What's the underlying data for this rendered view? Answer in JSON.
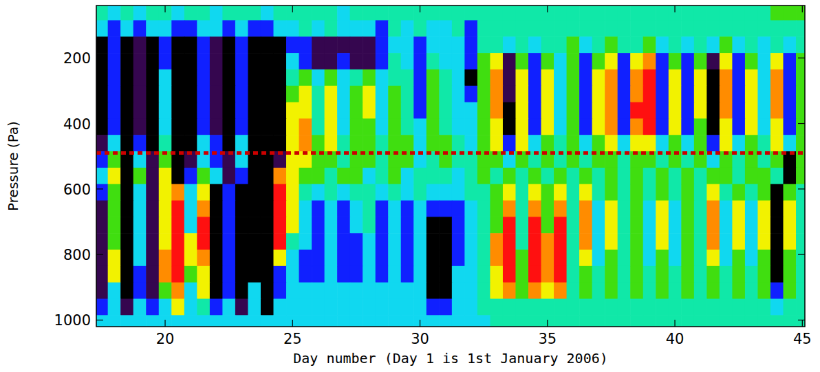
{
  "chart_data": {
    "type": "heatmap",
    "x_label": "Day number (Day 1 is 1st January 2006)",
    "y_label": "Pressure (Pa)",
    "xlim": [
      17.3,
      45.1
    ],
    "ylim": [
      1020,
      40
    ],
    "xticks": [
      20,
      25,
      30,
      35,
      40,
      45
    ],
    "yticks": [
      200,
      400,
      600,
      800,
      1000
    ],
    "zlim": [
      0,
      8
    ],
    "reference_line": {
      "value": 490,
      "color": "#cc0000",
      "line_style": "dotted"
    },
    "x": [
      17.5,
      18.0,
      18.5,
      19.0,
      19.5,
      20.0,
      20.5,
      21.0,
      21.5,
      22.0,
      22.5,
      23.0,
      23.5,
      24.0,
      24.5,
      25.0,
      25.5,
      26.0,
      26.5,
      27.0,
      27.5,
      28.0,
      28.5,
      29.0,
      29.5,
      30.0,
      30.5,
      31.0,
      31.5,
      32.0,
      32.5,
      33.0,
      33.5,
      34.0,
      34.5,
      35.0,
      35.5,
      36.0,
      36.5,
      37.0,
      37.5,
      38.0,
      38.5,
      39.0,
      39.5,
      40.0,
      40.5,
      41.0,
      41.5,
      42.0,
      42.5,
      43.0,
      43.5,
      44.0,
      44.5,
      45.0
    ],
    "y": [
      60,
      110,
      160,
      210,
      260,
      310,
      360,
      410,
      460,
      510,
      560,
      610,
      660,
      710,
      760,
      810,
      860,
      910,
      960,
      1010
    ],
    "z": [
      [
        4,
        3,
        4,
        3,
        4,
        4,
        3,
        4,
        4,
        3,
        4,
        4,
        4,
        3,
        4,
        4,
        4,
        4,
        4,
        3,
        4,
        4,
        4,
        4,
        4,
        4,
        4,
        4,
        4,
        4,
        4,
        4,
        4,
        4,
        4,
        4,
        4,
        4,
        4,
        4,
        4,
        4,
        4,
        4,
        4,
        4,
        4,
        4,
        4,
        4,
        4,
        4,
        4,
        5,
        5,
        5
      ],
      [
        3,
        2,
        3,
        2,
        3,
        3,
        2,
        2,
        3,
        3,
        2,
        3,
        2,
        2,
        3,
        3,
        4,
        3,
        4,
        3,
        3,
        3,
        2,
        4,
        3,
        4,
        3,
        3,
        4,
        2,
        4,
        4,
        4,
        4,
        4,
        4,
        4,
        4,
        4,
        4,
        4,
        4,
        4,
        4,
        4,
        4,
        4,
        4,
        4,
        4,
        4,
        4,
        4,
        4,
        4,
        4
      ],
      [
        0,
        2,
        0,
        1,
        0,
        2,
        0,
        0,
        2,
        1,
        0,
        2,
        0,
        0,
        0,
        2,
        2,
        1,
        1,
        1,
        1,
        1,
        2,
        3,
        3,
        2,
        3,
        3,
        3,
        2,
        4,
        4,
        3,
        4,
        3,
        4,
        4,
        5,
        3,
        4,
        5,
        4,
        4,
        5,
        3,
        4,
        3,
        4,
        3,
        5,
        3,
        4,
        3,
        4,
        3,
        4
      ],
      [
        0,
        2,
        0,
        1,
        0,
        2,
        0,
        0,
        2,
        1,
        0,
        2,
        0,
        0,
        0,
        3,
        2,
        1,
        1,
        2,
        1,
        1,
        2,
        4,
        3,
        2,
        4,
        3,
        3,
        2,
        5,
        6,
        1,
        5,
        2,
        5,
        3,
        5,
        2,
        5,
        6,
        2,
        6,
        7,
        2,
        5,
        2,
        5,
        1,
        6,
        2,
        5,
        3,
        6,
        2,
        5
      ],
      [
        0,
        2,
        0,
        1,
        0,
        3,
        0,
        0,
        2,
        1,
        0,
        2,
        0,
        0,
        0,
        4,
        5,
        3,
        5,
        3,
        4,
        5,
        3,
        4,
        4,
        2,
        5,
        4,
        3,
        0,
        5,
        7,
        1,
        6,
        2,
        6,
        3,
        5,
        2,
        6,
        7,
        2,
        7,
        8,
        2,
        6,
        2,
        6,
        0,
        7,
        2,
        6,
        3,
        7,
        2,
        5
      ],
      [
        0,
        2,
        0,
        1,
        0,
        3,
        0,
        0,
        2,
        1,
        0,
        2,
        0,
        0,
        0,
        5,
        6,
        4,
        6,
        3,
        5,
        6,
        3,
        5,
        4,
        2,
        5,
        4,
        3,
        2,
        5,
        7,
        1,
        6,
        2,
        6,
        3,
        5,
        2,
        6,
        7,
        2,
        7,
        8,
        2,
        6,
        2,
        6,
        0,
        7,
        2,
        6,
        3,
        7,
        2,
        5
      ],
      [
        0,
        2,
        0,
        1,
        0,
        3,
        0,
        0,
        2,
        1,
        0,
        2,
        0,
        0,
        0,
        6,
        6,
        4,
        6,
        3,
        5,
        6,
        3,
        5,
        4,
        2,
        5,
        4,
        3,
        3,
        5,
        7,
        0,
        6,
        2,
        6,
        3,
        5,
        2,
        6,
        7,
        2,
        8,
        8,
        2,
        6,
        2,
        6,
        0,
        7,
        2,
        6,
        3,
        7,
        2,
        5
      ],
      [
        0,
        2,
        0,
        1,
        0,
        3,
        0,
        0,
        2,
        1,
        0,
        2,
        0,
        0,
        0,
        6,
        7,
        4,
        6,
        3,
        5,
        5,
        3,
        5,
        4,
        3,
        5,
        4,
        3,
        3,
        5,
        6,
        0,
        6,
        2,
        6,
        3,
        5,
        2,
        6,
        7,
        2,
        7,
        8,
        2,
        6,
        2,
        5,
        0,
        6,
        2,
        6,
        3,
        6,
        2,
        5
      ],
      [
        1,
        3,
        0,
        2,
        0,
        4,
        0,
        0,
        3,
        2,
        0,
        3,
        0,
        0,
        0,
        6,
        7,
        5,
        6,
        4,
        5,
        5,
        4,
        5,
        5,
        3,
        5,
        5,
        4,
        3,
        5,
        6,
        2,
        6,
        3,
        5,
        4,
        5,
        3,
        5,
        6,
        3,
        6,
        6,
        3,
        5,
        3,
        5,
        2,
        6,
        3,
        5,
        4,
        6,
        3,
        5
      ],
      [
        2,
        5,
        0,
        3,
        1,
        5,
        0,
        1,
        3,
        2,
        1,
        3,
        0,
        0,
        1,
        6,
        6,
        5,
        5,
        4,
        5,
        5,
        4,
        5,
        5,
        3,
        4,
        5,
        4,
        4,
        5,
        5,
        3,
        5,
        4,
        5,
        4,
        5,
        4,
        5,
        5,
        4,
        5,
        5,
        4,
        5,
        4,
        5,
        3,
        5,
        4,
        5,
        4,
        5,
        0,
        5
      ],
      [
        3,
        6,
        0,
        5,
        1,
        6,
        0,
        2,
        5,
        3,
        1,
        2,
        0,
        0,
        7,
        6,
        5,
        5,
        4,
        5,
        5,
        3,
        4,
        5,
        3,
        4,
        4,
        4,
        3,
        4,
        5,
        4,
        5,
        4,
        5,
        4,
        5,
        4,
        5,
        4,
        5,
        4,
        5,
        4,
        5,
        4,
        5,
        4,
        5,
        5,
        4,
        5,
        5,
        4,
        0,
        5
      ],
      [
        2,
        5,
        0,
        3,
        1,
        6,
        7,
        3,
        6,
        0,
        2,
        0,
        0,
        0,
        8,
        6,
        4,
        3,
        4,
        3,
        4,
        4,
        3,
        4,
        3,
        4,
        3,
        3,
        3,
        4,
        4,
        5,
        6,
        4,
        6,
        5,
        6,
        4,
        6,
        4,
        5,
        4,
        5,
        4,
        5,
        4,
        5,
        4,
        6,
        4,
        5,
        4,
        5,
        0,
        5,
        4
      ],
      [
        1,
        5,
        0,
        3,
        1,
        6,
        8,
        3,
        7,
        0,
        2,
        0,
        0,
        0,
        8,
        6,
        3,
        2,
        3,
        2,
        3,
        4,
        2,
        3,
        2,
        3,
        2,
        2,
        2,
        3,
        4,
        5,
        7,
        4,
        7,
        5,
        7,
        4,
        7,
        3,
        6,
        4,
        5,
        3,
        6,
        3,
        5,
        4,
        7,
        3,
        6,
        3,
        6,
        0,
        6,
        4
      ],
      [
        1,
        5,
        0,
        3,
        1,
        6,
        8,
        3,
        8,
        0,
        2,
        0,
        0,
        0,
        8,
        6,
        3,
        2,
        3,
        2,
        3,
        4,
        2,
        3,
        2,
        3,
        0,
        0,
        2,
        3,
        4,
        5,
        8,
        4,
        8,
        5,
        8,
        4,
        7,
        3,
        6,
        4,
        5,
        3,
        6,
        3,
        5,
        4,
        7,
        3,
        6,
        3,
        6,
        0,
        6,
        4
      ],
      [
        1,
        5,
        0,
        3,
        1,
        6,
        8,
        6,
        8,
        0,
        2,
        0,
        0,
        0,
        8,
        4,
        3,
        2,
        3,
        2,
        2,
        3,
        2,
        3,
        2,
        3,
        0,
        0,
        2,
        3,
        4,
        7,
        8,
        4,
        8,
        7,
        8,
        4,
        7,
        3,
        6,
        4,
        5,
        3,
        6,
        3,
        5,
        4,
        7,
        3,
        6,
        3,
        6,
        0,
        6,
        4
      ],
      [
        1,
        6,
        0,
        3,
        1,
        7,
        8,
        6,
        7,
        0,
        2,
        0,
        0,
        0,
        6,
        3,
        2,
        2,
        3,
        2,
        2,
        3,
        2,
        3,
        2,
        3,
        0,
        0,
        2,
        3,
        4,
        7,
        8,
        5,
        8,
        7,
        8,
        4,
        6,
        3,
        5,
        4,
        5,
        3,
        5,
        3,
        5,
        4,
        6,
        3,
        5,
        3,
        5,
        0,
        5,
        4
      ],
      [
        1,
        6,
        0,
        2,
        1,
        7,
        8,
        5,
        6,
        0,
        2,
        0,
        0,
        0,
        2,
        3,
        2,
        2,
        3,
        2,
        2,
        3,
        2,
        3,
        2,
        3,
        0,
        0,
        3,
        3,
        4,
        6,
        8,
        5,
        8,
        7,
        8,
        4,
        5,
        4,
        5,
        4,
        5,
        4,
        5,
        4,
        5,
        4,
        5,
        4,
        5,
        4,
        5,
        0,
        5,
        4
      ],
      [
        1,
        3,
        0,
        2,
        1,
        5,
        7,
        3,
        6,
        0,
        2,
        0,
        3,
        0,
        2,
        3,
        3,
        3,
        3,
        3,
        3,
        3,
        3,
        3,
        3,
        3,
        0,
        0,
        3,
        3,
        4,
        6,
        7,
        5,
        7,
        6,
        7,
        4,
        5,
        4,
        5,
        4,
        5,
        4,
        5,
        4,
        5,
        4,
        5,
        4,
        5,
        4,
        5,
        2,
        5,
        4
      ],
      [
        2,
        3,
        1,
        3,
        2,
        3,
        6,
        3,
        4,
        2,
        3,
        1,
        3,
        0,
        3,
        3,
        3,
        3,
        3,
        3,
        3,
        3,
        3,
        3,
        3,
        3,
        2,
        2,
        3,
        3,
        4,
        4,
        4,
        4,
        4,
        4,
        4,
        4,
        4,
        4,
        4,
        4,
        4,
        4,
        4,
        4,
        4,
        4,
        4,
        4,
        4,
        4,
        4,
        3,
        4,
        4
      ],
      [
        3,
        3,
        3,
        3,
        3,
        3,
        3,
        3,
        3,
        3,
        3,
        3,
        3,
        3,
        3,
        3,
        3,
        3,
        3,
        3,
        3,
        3,
        3,
        3,
        3,
        3,
        3,
        3,
        3,
        3,
        3,
        4,
        4,
        4,
        4,
        4,
        4,
        4,
        4,
        4,
        4,
        4,
        4,
        4,
        4,
        4,
        4,
        4,
        4,
        4,
        4,
        4,
        4,
        4,
        4,
        4
      ]
    ]
  }
}
